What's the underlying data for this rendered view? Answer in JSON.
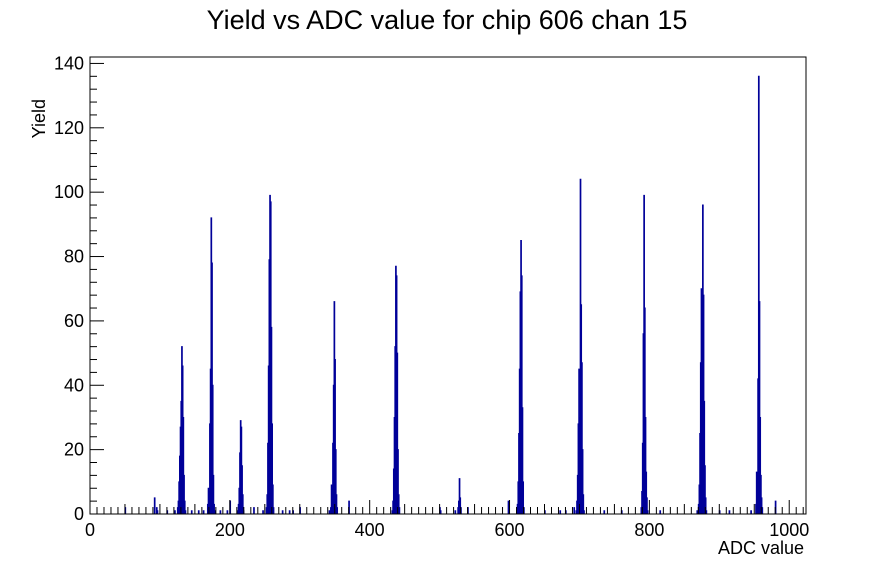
{
  "chart_data": {
    "type": "histogram",
    "title": "Yield vs ADC value for chip 606 chan 15",
    "xlabel": "ADC value",
    "ylabel": "Yield",
    "xlim": [
      0,
      1024
    ],
    "ylim": [
      0,
      142
    ],
    "x_ticks": [
      0,
      200,
      400,
      600,
      800,
      1000
    ],
    "y_ticks": [
      0,
      20,
      40,
      60,
      80,
      100,
      120,
      140
    ],
    "bin_width": 1,
    "line_color": "#000099",
    "bins": [
      {
        "x": 50,
        "y": 2
      },
      {
        "x": 92,
        "y": 5
      },
      {
        "x": 95,
        "y": 2
      },
      {
        "x": 96,
        "y": 1
      },
      {
        "x": 110,
        "y": 1
      },
      {
        "x": 121,
        "y": 1
      },
      {
        "x": 125,
        "y": 2
      },
      {
        "x": 126,
        "y": 4
      },
      {
        "x": 127,
        "y": 10
      },
      {
        "x": 128,
        "y": 18
      },
      {
        "x": 129,
        "y": 27
      },
      {
        "x": 130,
        "y": 35
      },
      {
        "x": 131,
        "y": 52
      },
      {
        "x": 132,
        "y": 46
      },
      {
        "x": 133,
        "y": 30
      },
      {
        "x": 134,
        "y": 12
      },
      {
        "x": 135,
        "y": 4
      },
      {
        "x": 136,
        "y": 1
      },
      {
        "x": 145,
        "y": 1
      },
      {
        "x": 155,
        "y": 1
      },
      {
        "x": 162,
        "y": 1
      },
      {
        "x": 168,
        "y": 3
      },
      {
        "x": 169,
        "y": 8
      },
      {
        "x": 170,
        "y": 7
      },
      {
        "x": 171,
        "y": 28
      },
      {
        "x": 172,
        "y": 45
      },
      {
        "x": 173,
        "y": 92
      },
      {
        "x": 174,
        "y": 78
      },
      {
        "x": 175,
        "y": 40
      },
      {
        "x": 176,
        "y": 12
      },
      {
        "x": 177,
        "y": 3
      },
      {
        "x": 178,
        "y": 1
      },
      {
        "x": 186,
        "y": 1
      },
      {
        "x": 196,
        "y": 1
      },
      {
        "x": 200,
        "y": 4
      },
      {
        "x": 211,
        "y": 1
      },
      {
        "x": 212,
        "y": 3
      },
      {
        "x": 213,
        "y": 8
      },
      {
        "x": 214,
        "y": 19
      },
      {
        "x": 215,
        "y": 29
      },
      {
        "x": 216,
        "y": 27
      },
      {
        "x": 217,
        "y": 15
      },
      {
        "x": 218,
        "y": 6
      },
      {
        "x": 219,
        "y": 1
      },
      {
        "x": 234,
        "y": 2
      },
      {
        "x": 247,
        "y": 1
      },
      {
        "x": 252,
        "y": 2
      },
      {
        "x": 253,
        "y": 6
      },
      {
        "x": 254,
        "y": 22
      },
      {
        "x": 255,
        "y": 46
      },
      {
        "x": 256,
        "y": 79
      },
      {
        "x": 257,
        "y": 99
      },
      {
        "x": 258,
        "y": 97
      },
      {
        "x": 259,
        "y": 58
      },
      {
        "x": 260,
        "y": 28
      },
      {
        "x": 261,
        "y": 9
      },
      {
        "x": 262,
        "y": 2
      },
      {
        "x": 275,
        "y": 1
      },
      {
        "x": 285,
        "y": 1
      },
      {
        "x": 290,
        "y": 1
      },
      {
        "x": 300,
        "y": 2
      },
      {
        "x": 342,
        "y": 1
      },
      {
        "x": 344,
        "y": 2
      },
      {
        "x": 345,
        "y": 9
      },
      {
        "x": 346,
        "y": 8
      },
      {
        "x": 347,
        "y": 22
      },
      {
        "x": 348,
        "y": 40
      },
      {
        "x": 349,
        "y": 66
      },
      {
        "x": 350,
        "y": 48
      },
      {
        "x": 351,
        "y": 20
      },
      {
        "x": 352,
        "y": 6
      },
      {
        "x": 353,
        "y": 2
      },
      {
        "x": 370,
        "y": 4
      },
      {
        "x": 432,
        "y": 1
      },
      {
        "x": 433,
        "y": 4
      },
      {
        "x": 434,
        "y": 14
      },
      {
        "x": 435,
        "y": 30
      },
      {
        "x": 436,
        "y": 52
      },
      {
        "x": 437,
        "y": 77
      },
      {
        "x": 438,
        "y": 74
      },
      {
        "x": 439,
        "y": 50
      },
      {
        "x": 440,
        "y": 20
      },
      {
        "x": 441,
        "y": 6
      },
      {
        "x": 442,
        "y": 2
      },
      {
        "x": 500,
        "y": 2
      },
      {
        "x": 501,
        "y": 1
      },
      {
        "x": 522,
        "y": 1
      },
      {
        "x": 526,
        "y": 2
      },
      {
        "x": 527,
        "y": 4
      },
      {
        "x": 528,
        "y": 11
      },
      {
        "x": 529,
        "y": 5
      },
      {
        "x": 530,
        "y": 2
      },
      {
        "x": 540,
        "y": 2
      },
      {
        "x": 598,
        "y": 4
      },
      {
        "x": 610,
        "y": 1
      },
      {
        "x": 611,
        "y": 3
      },
      {
        "x": 612,
        "y": 10
      },
      {
        "x": 613,
        "y": 25
      },
      {
        "x": 614,
        "y": 45
      },
      {
        "x": 615,
        "y": 69
      },
      {
        "x": 616,
        "y": 85
      },
      {
        "x": 617,
        "y": 74
      },
      {
        "x": 618,
        "y": 33
      },
      {
        "x": 619,
        "y": 10
      },
      {
        "x": 620,
        "y": 2
      },
      {
        "x": 650,
        "y": 1
      },
      {
        "x": 672,
        "y": 1
      },
      {
        "x": 680,
        "y": 1
      },
      {
        "x": 692,
        "y": 2
      },
      {
        "x": 695,
        "y": 1
      },
      {
        "x": 696,
        "y": 4
      },
      {
        "x": 697,
        "y": 12
      },
      {
        "x": 698,
        "y": 28
      },
      {
        "x": 699,
        "y": 45
      },
      {
        "x": 700,
        "y": 30
      },
      {
        "x": 701,
        "y": 104
      },
      {
        "x": 702,
        "y": 65
      },
      {
        "x": 703,
        "y": 47
      },
      {
        "x": 704,
        "y": 20
      },
      {
        "x": 705,
        "y": 6
      },
      {
        "x": 706,
        "y": 1
      },
      {
        "x": 735,
        "y": 1
      },
      {
        "x": 760,
        "y": 1
      },
      {
        "x": 788,
        "y": 2
      },
      {
        "x": 789,
        "y": 7
      },
      {
        "x": 790,
        "y": 22
      },
      {
        "x": 791,
        "y": 56
      },
      {
        "x": 792,
        "y": 99
      },
      {
        "x": 793,
        "y": 64
      },
      {
        "x": 794,
        "y": 30
      },
      {
        "x": 795,
        "y": 13
      },
      {
        "x": 796,
        "y": 5
      },
      {
        "x": 797,
        "y": 1
      },
      {
        "x": 815,
        "y": 1
      },
      {
        "x": 868,
        "y": 1
      },
      {
        "x": 870,
        "y": 3
      },
      {
        "x": 871,
        "y": 9
      },
      {
        "x": 872,
        "y": 25
      },
      {
        "x": 873,
        "y": 47
      },
      {
        "x": 874,
        "y": 70
      },
      {
        "x": 875,
        "y": 62
      },
      {
        "x": 876,
        "y": 96
      },
      {
        "x": 877,
        "y": 68
      },
      {
        "x": 878,
        "y": 35
      },
      {
        "x": 879,
        "y": 15
      },
      {
        "x": 880,
        "y": 5
      },
      {
        "x": 881,
        "y": 1
      },
      {
        "x": 900,
        "y": 1
      },
      {
        "x": 914,
        "y": 1
      },
      {
        "x": 945,
        "y": 1
      },
      {
        "x": 952,
        "y": 3
      },
      {
        "x": 953,
        "y": 13
      },
      {
        "x": 954,
        "y": 6
      },
      {
        "x": 955,
        "y": 42
      },
      {
        "x": 956,
        "y": 136
      },
      {
        "x": 957,
        "y": 66
      },
      {
        "x": 958,
        "y": 30
      },
      {
        "x": 959,
        "y": 12
      },
      {
        "x": 960,
        "y": 5
      },
      {
        "x": 961,
        "y": 2
      },
      {
        "x": 980,
        "y": 4
      }
    ]
  }
}
